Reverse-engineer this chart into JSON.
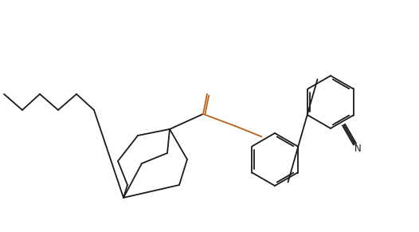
{
  "bg_color": "#ffffff",
  "line_color": "#1a1a1a",
  "o_color": "#b8621a",
  "figsize": [
    5.26,
    2.91
  ],
  "dpi": 100,
  "lw": 1.3
}
